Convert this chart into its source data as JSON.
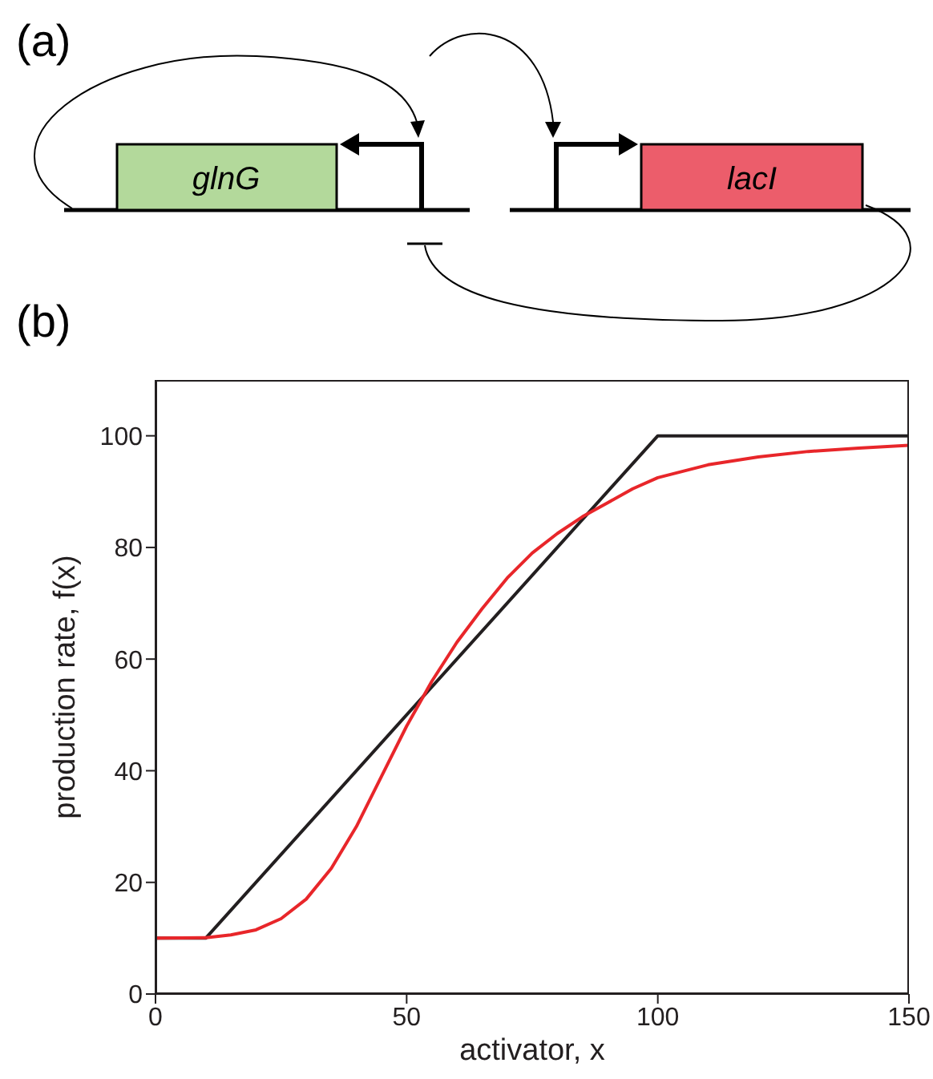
{
  "chart_data": {
    "type": "line",
    "xlabel": "activator, x",
    "ylabel": "production rate, f(x)",
    "annotations": [
      "(a)",
      "glnG",
      "lacI",
      "(b)"
    ],
    "xlim": [
      0,
      150
    ],
    "xticks": [
      0,
      50,
      100,
      150
    ],
    "ylim": [
      0,
      110
    ],
    "yticks": [
      0,
      20,
      40,
      60,
      80,
      100
    ],
    "grid": false,
    "legend": false,
    "marker": "none",
    "line_style": "solid",
    "series": [
      {
        "color": "#231f20",
        "x": [
          0,
          10,
          100,
          150
        ],
        "values": [
          10,
          10,
          100,
          100
        ]
      },
      {
        "color": "#e8262a",
        "x": [
          0,
          10,
          15,
          20,
          25,
          30,
          35,
          40,
          45,
          50,
          55,
          60,
          65,
          70,
          75,
          80,
          85,
          90,
          95,
          100,
          110,
          120,
          130,
          140,
          150
        ],
        "values": [
          10,
          10.1,
          10.6,
          11.5,
          13.5,
          17,
          22.5,
          30,
          39,
          48,
          56,
          63,
          69,
          74.5,
          79,
          82.5,
          85.5,
          88,
          90.5,
          92.5,
          94.8,
          96.2,
          97.2,
          97.8,
          98.3
        ]
      }
    ]
  }
}
